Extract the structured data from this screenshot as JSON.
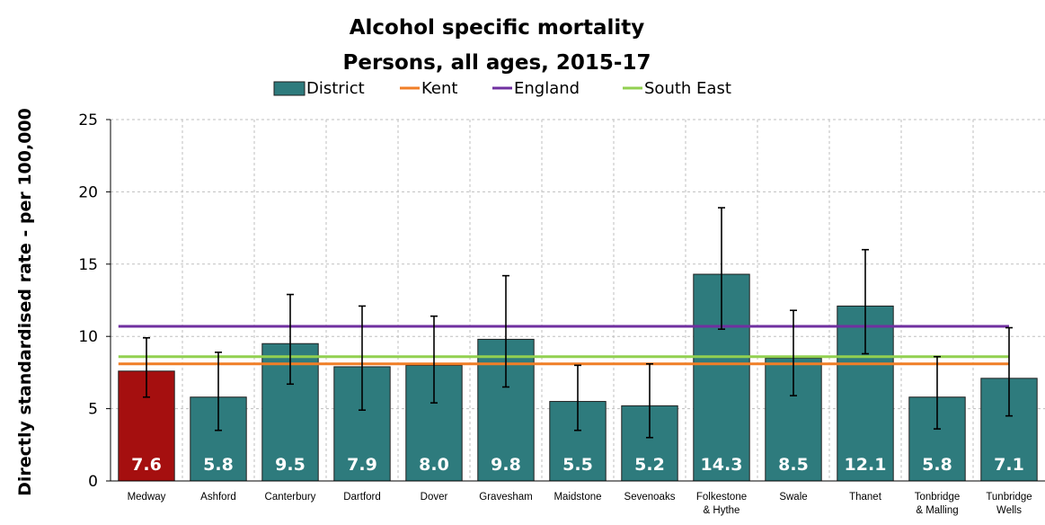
{
  "chart_data": {
    "type": "bar",
    "title": "Alcohol specific mortality",
    "subtitle": "Persons, all ages, 2015-17",
    "ylabel": "Directly standardised rate - per 100,000",
    "xlabel": "",
    "ylim": [
      0,
      25
    ],
    "yticks": [
      0,
      5,
      10,
      15,
      20,
      25
    ],
    "grid": true,
    "legend_position": "top",
    "categories": [
      [
        "Medway"
      ],
      [
        "Ashford"
      ],
      [
        "Canterbury"
      ],
      [
        "Dartford"
      ],
      [
        "Dover"
      ],
      [
        "Gravesham"
      ],
      [
        "Maidstone"
      ],
      [
        "Sevenoaks"
      ],
      [
        "Folkestone",
        "& Hythe"
      ],
      [
        "Swale"
      ],
      [
        "Thanet"
      ],
      [
        "Tonbridge",
        "& Malling"
      ],
      [
        "Tunbridge",
        "Wells"
      ]
    ],
    "series": [
      {
        "name": "District",
        "values": [
          7.6,
          5.8,
          9.5,
          7.9,
          8.0,
          9.8,
          5.5,
          5.2,
          14.3,
          8.5,
          12.1,
          5.8,
          7.1
        ],
        "labels": [
          "7.6",
          "5.8",
          "9.5",
          "7.9",
          "8.0",
          "9.8",
          "5.5",
          "5.2",
          "14.3",
          "8.5",
          "12.1",
          "5.8",
          "7.1"
        ],
        "ci_lower": [
          5.8,
          3.5,
          6.7,
          4.9,
          5.4,
          6.5,
          3.5,
          3.0,
          10.5,
          5.9,
          8.8,
          3.6,
          4.5
        ],
        "ci_upper": [
          9.9,
          8.9,
          12.9,
          12.1,
          11.4,
          14.2,
          8.0,
          8.1,
          18.9,
          11.8,
          16.0,
          8.6,
          10.6
        ]
      }
    ],
    "reference_lines": [
      {
        "name": "Kent",
        "value": 8.1,
        "color": "#F07E26"
      },
      {
        "name": "England",
        "value": 10.7,
        "color": "#7030A0"
      },
      {
        "name": "South East",
        "value": 8.6,
        "color": "#92D050"
      }
    ],
    "colors": {
      "district": "#2E7B7D",
      "highlight": "#A50F0F",
      "highlight_index": 0,
      "error_bar": "#000000",
      "grid": "#BFBFBF"
    }
  }
}
